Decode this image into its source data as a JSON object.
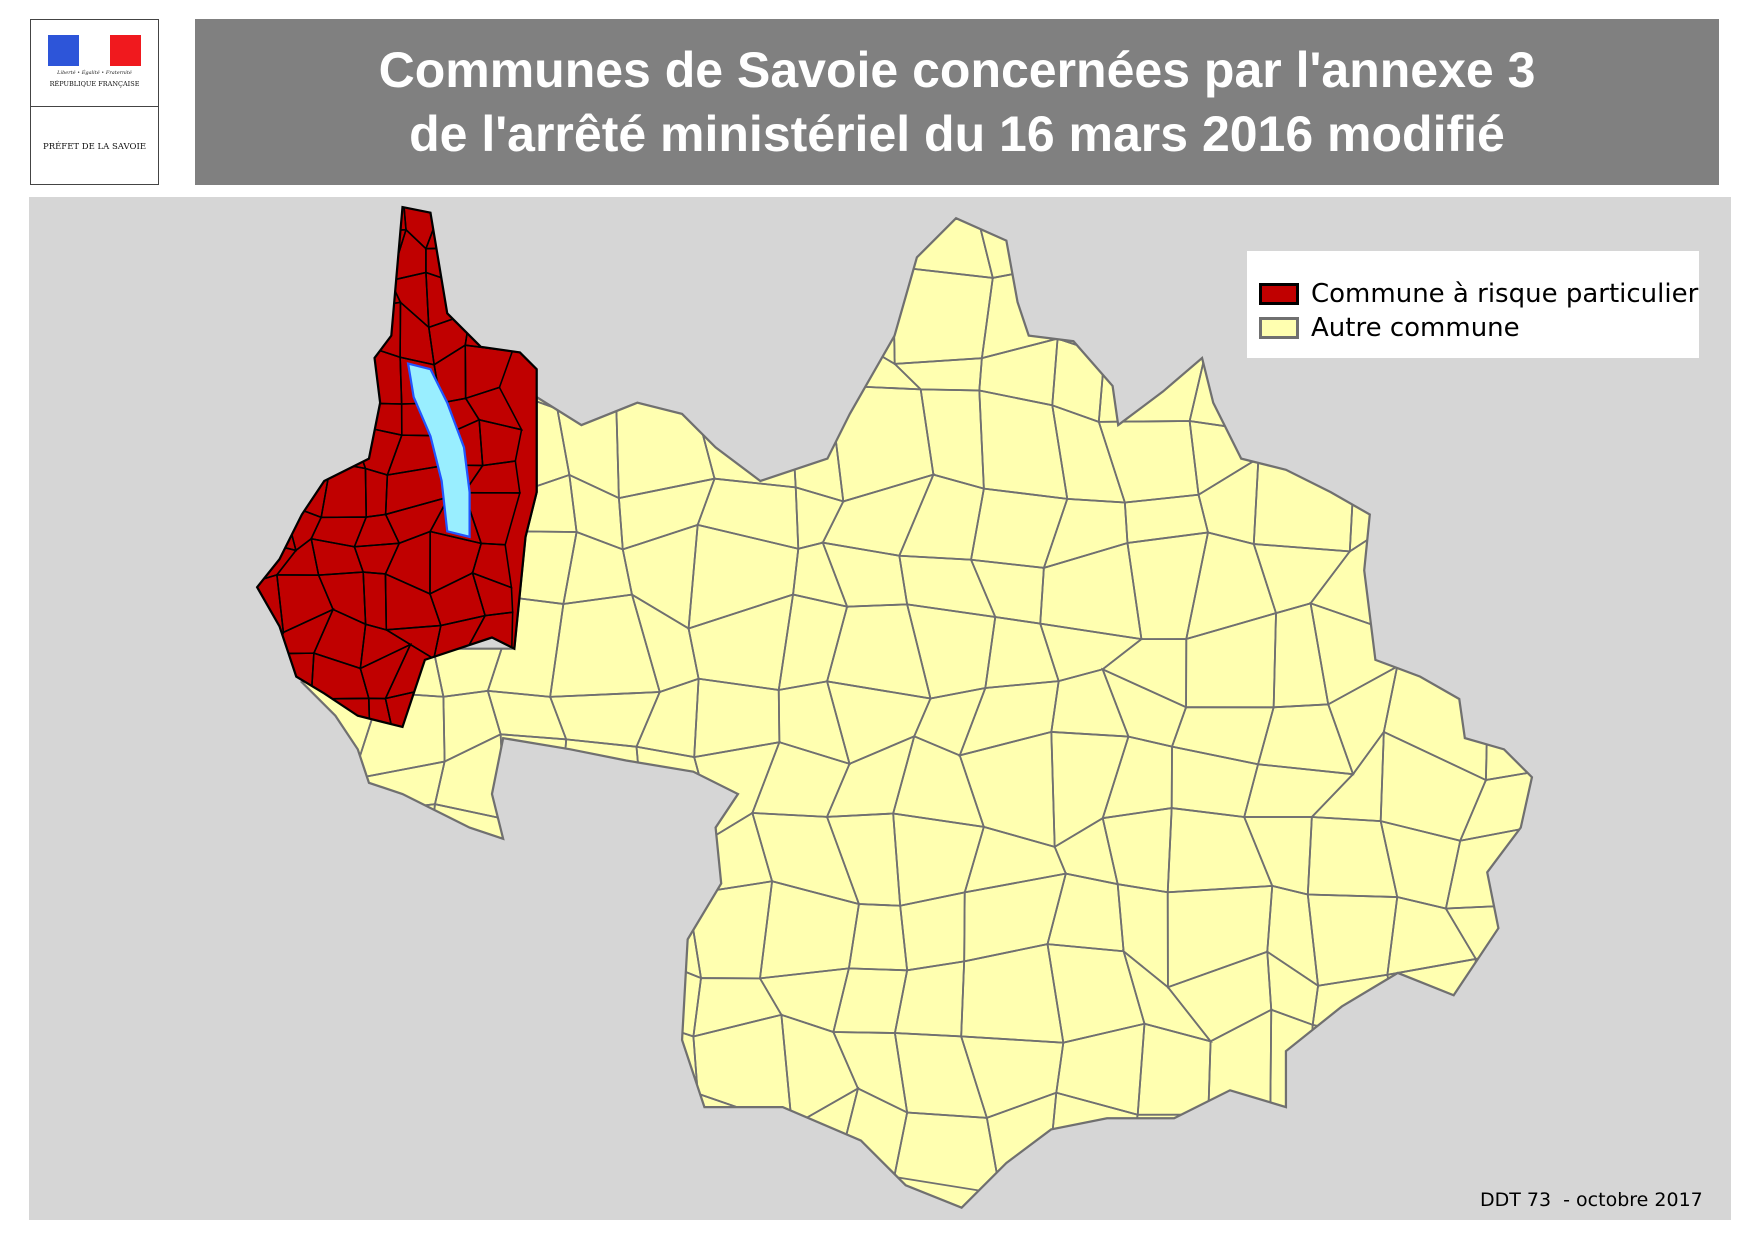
{
  "header": {
    "logo": {
      "motto": "Liberté • Égalité • Fraternité",
      "republic": "RÉPUBLIQUE FRANÇAISE",
      "prefecture": "PRÉFET DE LA SAVOIE"
    },
    "title_line1": "Communes de Savoie concernées par l'annexe 3",
    "title_line2": "de l'arrêté ministériel du 16 mars 2016 modifié"
  },
  "legend": {
    "items": [
      {
        "label": "Commune à risque particulier",
        "color": "#c00000",
        "border": "#000000"
      },
      {
        "label": "Autre commune",
        "color": "#ffffb0",
        "border": "#707070"
      }
    ]
  },
  "colors": {
    "background": "#d6d6d6",
    "lake": "#99eeff",
    "title_bar": "#808080"
  },
  "footer": "DDT 73  - octobre 2017"
}
